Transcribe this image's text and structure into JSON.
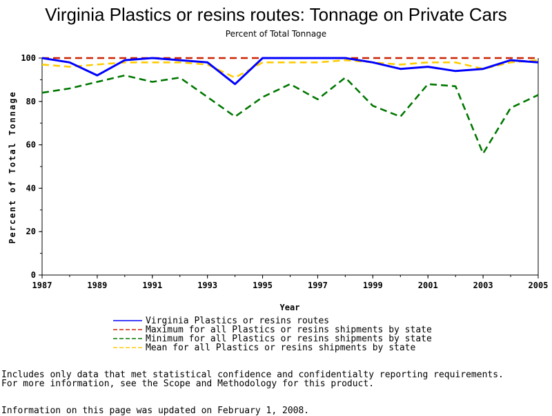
{
  "chart_data": {
    "type": "line",
    "title": "Virginia Plastics or resins routes: Tonnage on Private Cars",
    "subtitle": "Percent of Total Tonnage",
    "xlabel": "Year",
    "ylabel": "Percent of Total Tonnage",
    "xlim": [
      1987,
      2005
    ],
    "ylim": [
      0,
      100
    ],
    "x_ticks": [
      "1987",
      "1989",
      "1991",
      "1993",
      "1995",
      "1997",
      "1999",
      "2001",
      "2003",
      "2005"
    ],
    "y_ticks": [
      "0",
      "20",
      "40",
      "60",
      "80",
      "100"
    ],
    "grid": false,
    "legend_position": "bottom",
    "x": [
      1987,
      1988,
      1989,
      1990,
      1991,
      1992,
      1993,
      1994,
      1995,
      1996,
      1997,
      1998,
      1999,
      2000,
      2001,
      2002,
      2003,
      2004,
      2005
    ],
    "series": [
      {
        "name": "Virginia Plastics or resins routes",
        "color": "#0000ff",
        "dash": "solid",
        "values": [
          100,
          98,
          92,
          99,
          100,
          99,
          98,
          88,
          100,
          100,
          100,
          100,
          98,
          95,
          96,
          94,
          95,
          99,
          98
        ]
      },
      {
        "name": "Maximum for all Plastics or resins shipments by state",
        "color": "#cc2200",
        "dash": "dashed",
        "values": [
          100,
          100,
          100,
          100,
          100,
          100,
          100,
          100,
          100,
          100,
          100,
          100,
          100,
          100,
          100,
          100,
          100,
          100,
          100
        ]
      },
      {
        "name": "Minimum for all Plastics or resins shipments by state",
        "color": "#007700",
        "dash": "dashed",
        "values": [
          84,
          86,
          89,
          92,
          89,
          91,
          82,
          73,
          82,
          88,
          81,
          91,
          78,
          73,
          88,
          87,
          56,
          77,
          83
        ]
      },
      {
        "name": "Mean for all Plastics or resins shipments by state",
        "color": "#ffcc00",
        "dash": "dashed",
        "values": [
          97,
          96,
          97,
          98,
          98,
          98,
          97,
          91,
          98,
          98,
          98,
          99,
          98,
          97,
          98,
          98,
          95,
          98,
          99
        ]
      }
    ]
  },
  "notes": {
    "line1": "Includes only data that met statistical confidence and confidentialty reporting requirements.",
    "line2": "For more information, see the Scope and Methodology for this product.",
    "updated": "Information on this page was updated on February 1, 2008."
  }
}
